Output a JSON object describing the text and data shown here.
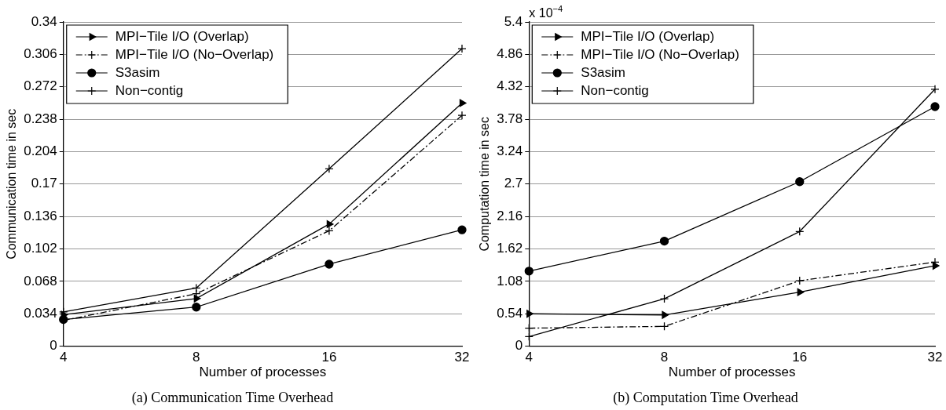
{
  "chart_data": [
    {
      "type": "line",
      "title": "(a) Communication Time Overhead",
      "xlabel": "Number of processes",
      "ylabel": "Communication time in sec",
      "categories": [
        "4",
        "8",
        "16",
        "32"
      ],
      "ylim": [
        0,
        0.34
      ],
      "yticks": [
        0,
        0.034,
        0.068,
        0.102,
        0.136,
        0.17,
        0.204,
        0.238,
        0.272,
        0.306,
        0.34
      ],
      "grid": "y",
      "legend": "top left",
      "series": [
        {
          "name": "MPI−Tile I/O (Overlap)",
          "color": "#000000",
          "marker": "triangle",
          "line_style": "solid",
          "values": [
            0.033,
            0.05,
            0.128,
            0.255
          ]
        },
        {
          "name": "MPI−Tile I/O (No−Overlap)",
          "color": "#000000",
          "marker": "cross",
          "line_style": "dashed",
          "values": [
            0.027,
            0.055,
            0.121,
            0.242
          ]
        },
        {
          "name": "S3asim",
          "color": "#000000",
          "marker": "circle",
          "line_style": "solid",
          "values": [
            0.028,
            0.041,
            0.086,
            0.122
          ]
        },
        {
          "name": "Non−contig",
          "color": "#000000",
          "marker": "cross",
          "line_style": "solid",
          "values": [
            0.036,
            0.061,
            0.186,
            0.312
          ]
        }
      ]
    },
    {
      "type": "line",
      "title": "(b) Computation Time Overhead",
      "xlabel": "Number of processes",
      "ylabel": "Computation time in sec",
      "annotations": [
        "x 10$^{−4}$"
      ],
      "categories": [
        "4",
        "8",
        "16",
        "32"
      ],
      "ylim": [
        0,
        5.4
      ],
      "yticks": [
        0,
        0.54,
        1.08,
        1.62,
        2.16,
        2.7,
        3.24,
        3.78,
        4.32,
        4.86,
        5.4
      ],
      "grid": "y",
      "legend": "top left",
      "series": [
        {
          "name": "MPI−Tile I/O (Overlap)",
          "color": "#000000",
          "marker": "triangle",
          "line_style": "solid",
          "values": [
            0.54,
            0.52,
            0.9,
            1.34
          ]
        },
        {
          "name": "MPI−Tile I/O (No−Overlap)",
          "color": "#000000",
          "marker": "cross",
          "line_style": "dashed",
          "values": [
            0.3,
            0.33,
            1.09,
            1.4
          ]
        },
        {
          "name": "S3asim",
          "color": "#000000",
          "marker": "circle",
          "line_style": "solid",
          "values": [
            1.25,
            1.75,
            2.74,
            3.99
          ]
        },
        {
          "name": "Non−contig",
          "color": "#000000",
          "marker": "cross",
          "line_style": "solid",
          "values": [
            0.16,
            0.79,
            1.91,
            4.28
          ]
        }
      ]
    }
  ]
}
